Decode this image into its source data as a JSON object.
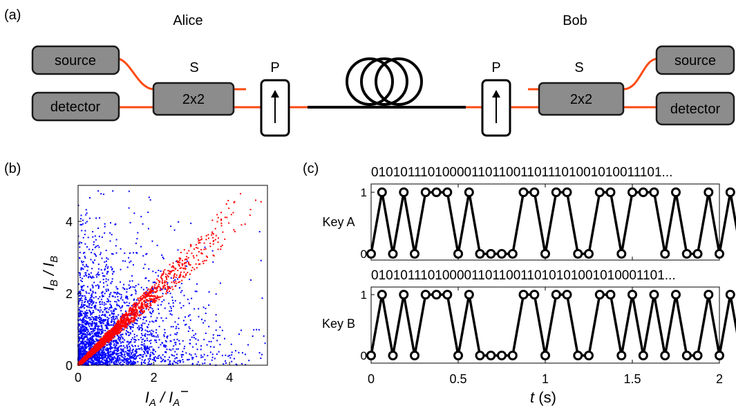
{
  "panel_a": {
    "label": "(a)",
    "alice": {
      "title": "Alice",
      "source": "source",
      "detector": "detector",
      "splitter_tag": "S",
      "splitter": "2x2",
      "polarizer_tag": "P"
    },
    "bob": {
      "title": "Bob",
      "source": "source",
      "detector": "detector",
      "splitter_tag": "S",
      "splitter": "2x2",
      "polarizer_tag": "P"
    },
    "colors": {
      "fiber": "#ff4a12",
      "component": "#8c8c8c"
    }
  },
  "panel_b": {
    "label": "(b)",
    "chart_data": {
      "type": "scatter",
      "xlabel_main": "I",
      "xlabel_sub": "A",
      "ylabel_main": "I",
      "ylabel_sub": "B",
      "xlim": [
        0,
        5
      ],
      "ylim": [
        0,
        5
      ],
      "xticks": [
        "0",
        "2",
        "4"
      ],
      "yticks": [
        "0",
        "2",
        "4"
      ],
      "series": [
        {
          "color": "#0000ff",
          "description_points": "uncorrelated I_A vs I_B, dense near origin",
          "n": 2600,
          "seed": 7
        },
        {
          "color": "#ff0000",
          "description_points": "correlated I_A ≈ I_B along diagonal",
          "n": 2200,
          "seed": 13
        }
      ]
    }
  },
  "panel_c": {
    "label": "(c)",
    "chart_data": {
      "type": "line",
      "xlabel": "t",
      "xlabel_unit": "(s)",
      "xlim": [
        0,
        2
      ],
      "xticks": [
        "0",
        "0.5",
        "1",
        "1.5",
        "2"
      ],
      "dt": 0.0625,
      "series": [
        {
          "name": "Key A",
          "bits_text": "01010111010000110110011011101001010011101...",
          "values": [
            0,
            1,
            0,
            1,
            0,
            1,
            1,
            1,
            0,
            1,
            0,
            0,
            0,
            0,
            1,
            1,
            0,
            1,
            1,
            0,
            0,
            1,
            1,
            0,
            1,
            1,
            1,
            0,
            1,
            0,
            0,
            1,
            0,
            1,
            0,
            0,
            1,
            1,
            1,
            0,
            1
          ]
        },
        {
          "name": "Key B",
          "bits_text": "01010111010000110110011010101001010001101...",
          "values": [
            0,
            1,
            0,
            1,
            0,
            1,
            1,
            1,
            0,
            1,
            0,
            0,
            0,
            0,
            1,
            1,
            0,
            1,
            1,
            0,
            0,
            1,
            1,
            0,
            1,
            0,
            1,
            0,
            1,
            0,
            0,
            1,
            0,
            1,
            0,
            0,
            0,
            1,
            1,
            0,
            1
          ]
        }
      ],
      "yticks": [
        "0",
        "1"
      ]
    }
  }
}
